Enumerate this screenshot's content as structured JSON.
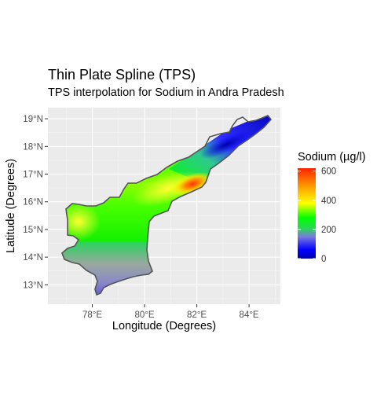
{
  "chart_data": {
    "type": "map",
    "title": "Thin Plate Spline (TPS)",
    "subtitle": "TPS interpolation for Sodium in Andra Pradesh",
    "xlabel": "Longitude (Degrees)",
    "ylabel": "Latitude (Degrees)",
    "x_ticks": [
      {
        "value": 78,
        "label": "78°E"
      },
      {
        "value": 80,
        "label": "80°E"
      },
      {
        "value": 82,
        "label": "82°E"
      },
      {
        "value": 84,
        "label": "84°E"
      }
    ],
    "y_ticks": [
      {
        "value": 13,
        "label": "13°N"
      },
      {
        "value": 14,
        "label": "14°N"
      },
      {
        "value": 15,
        "label": "15°N"
      },
      {
        "value": 16,
        "label": "16°N"
      },
      {
        "value": 17,
        "label": "17°N"
      },
      {
        "value": 18,
        "label": "18°N"
      },
      {
        "value": 19,
        "label": "19°N"
      }
    ],
    "xlim": [
      76.3,
      85.2
    ],
    "ylim": [
      12.3,
      19.4
    ],
    "grid": true,
    "legend": {
      "title": "Sodium (µg/l)",
      "position": "right",
      "min": 0,
      "max": 620,
      "ticks": [
        0,
        200,
        400,
        600
      ],
      "colors": [
        {
          "value": 0,
          "color": "#0000aa"
        },
        {
          "value": 60,
          "color": "#0000ff"
        },
        {
          "value": 150,
          "color": "#7a7ae0"
        },
        {
          "value": 200,
          "color": "#30d060"
        },
        {
          "value": 280,
          "color": "#00ff00"
        },
        {
          "value": 380,
          "color": "#ffff00"
        },
        {
          "value": 480,
          "color": "#ffaa00"
        },
        {
          "value": 620,
          "color": "#ff2200"
        }
      ]
    }
  }
}
